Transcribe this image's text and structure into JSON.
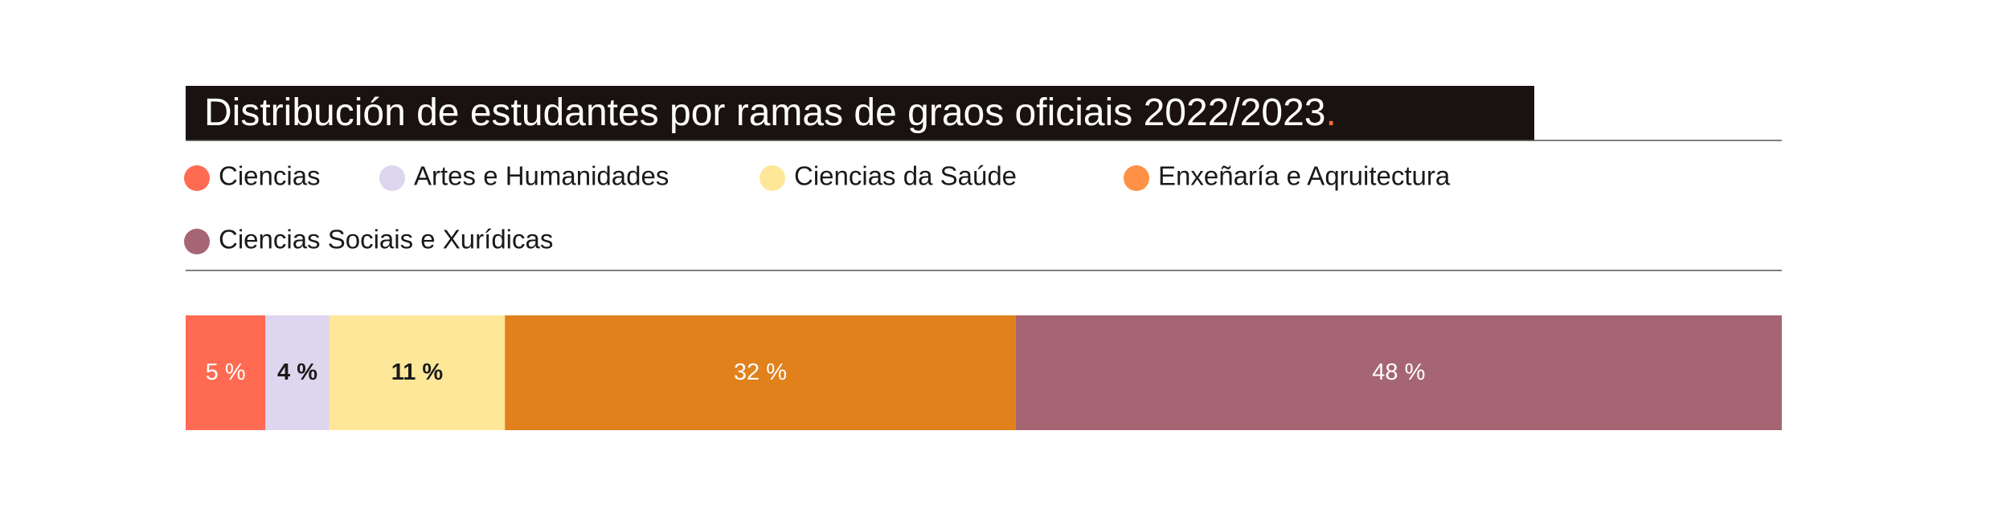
{
  "chart_data": {
    "type": "stacked_bar",
    "title": "Distribución de estudantes por ramas de graos oficiais 2022/2023.",
    "series": [
      {
        "name": "Ciencias",
        "color": "#ff6b52",
        "values": [
          5
        ],
        "value_labels": [
          "5 %"
        ]
      },
      {
        "name": "Artes e Humanidades",
        "color": "#ded5ee",
        "values": [
          4
        ],
        "value_labels": [
          "4 %"
        ]
      },
      {
        "name": "Ciencias da Saúde",
        "color": "#fee799",
        "values": [
          11
        ],
        "value_labels": [
          "11 %"
        ]
      },
      {
        "name": "Enxeñaría e Aqruitectura",
        "color": "#e0811c",
        "values": [
          32
        ],
        "value_labels": [
          "32 %"
        ]
      },
      {
        "name": "Ciencias Sociais e Xurídicas",
        "color": "#a66573",
        "values": [
          48
        ],
        "value_labels": [
          "48 %"
        ]
      }
    ],
    "title_accent_color": "#ff6b35",
    "legend_marker_colors": [
      "#ff6b52",
      "#ded5ee",
      "#fee799",
      "#ff9147",
      "#a66573"
    ]
  }
}
